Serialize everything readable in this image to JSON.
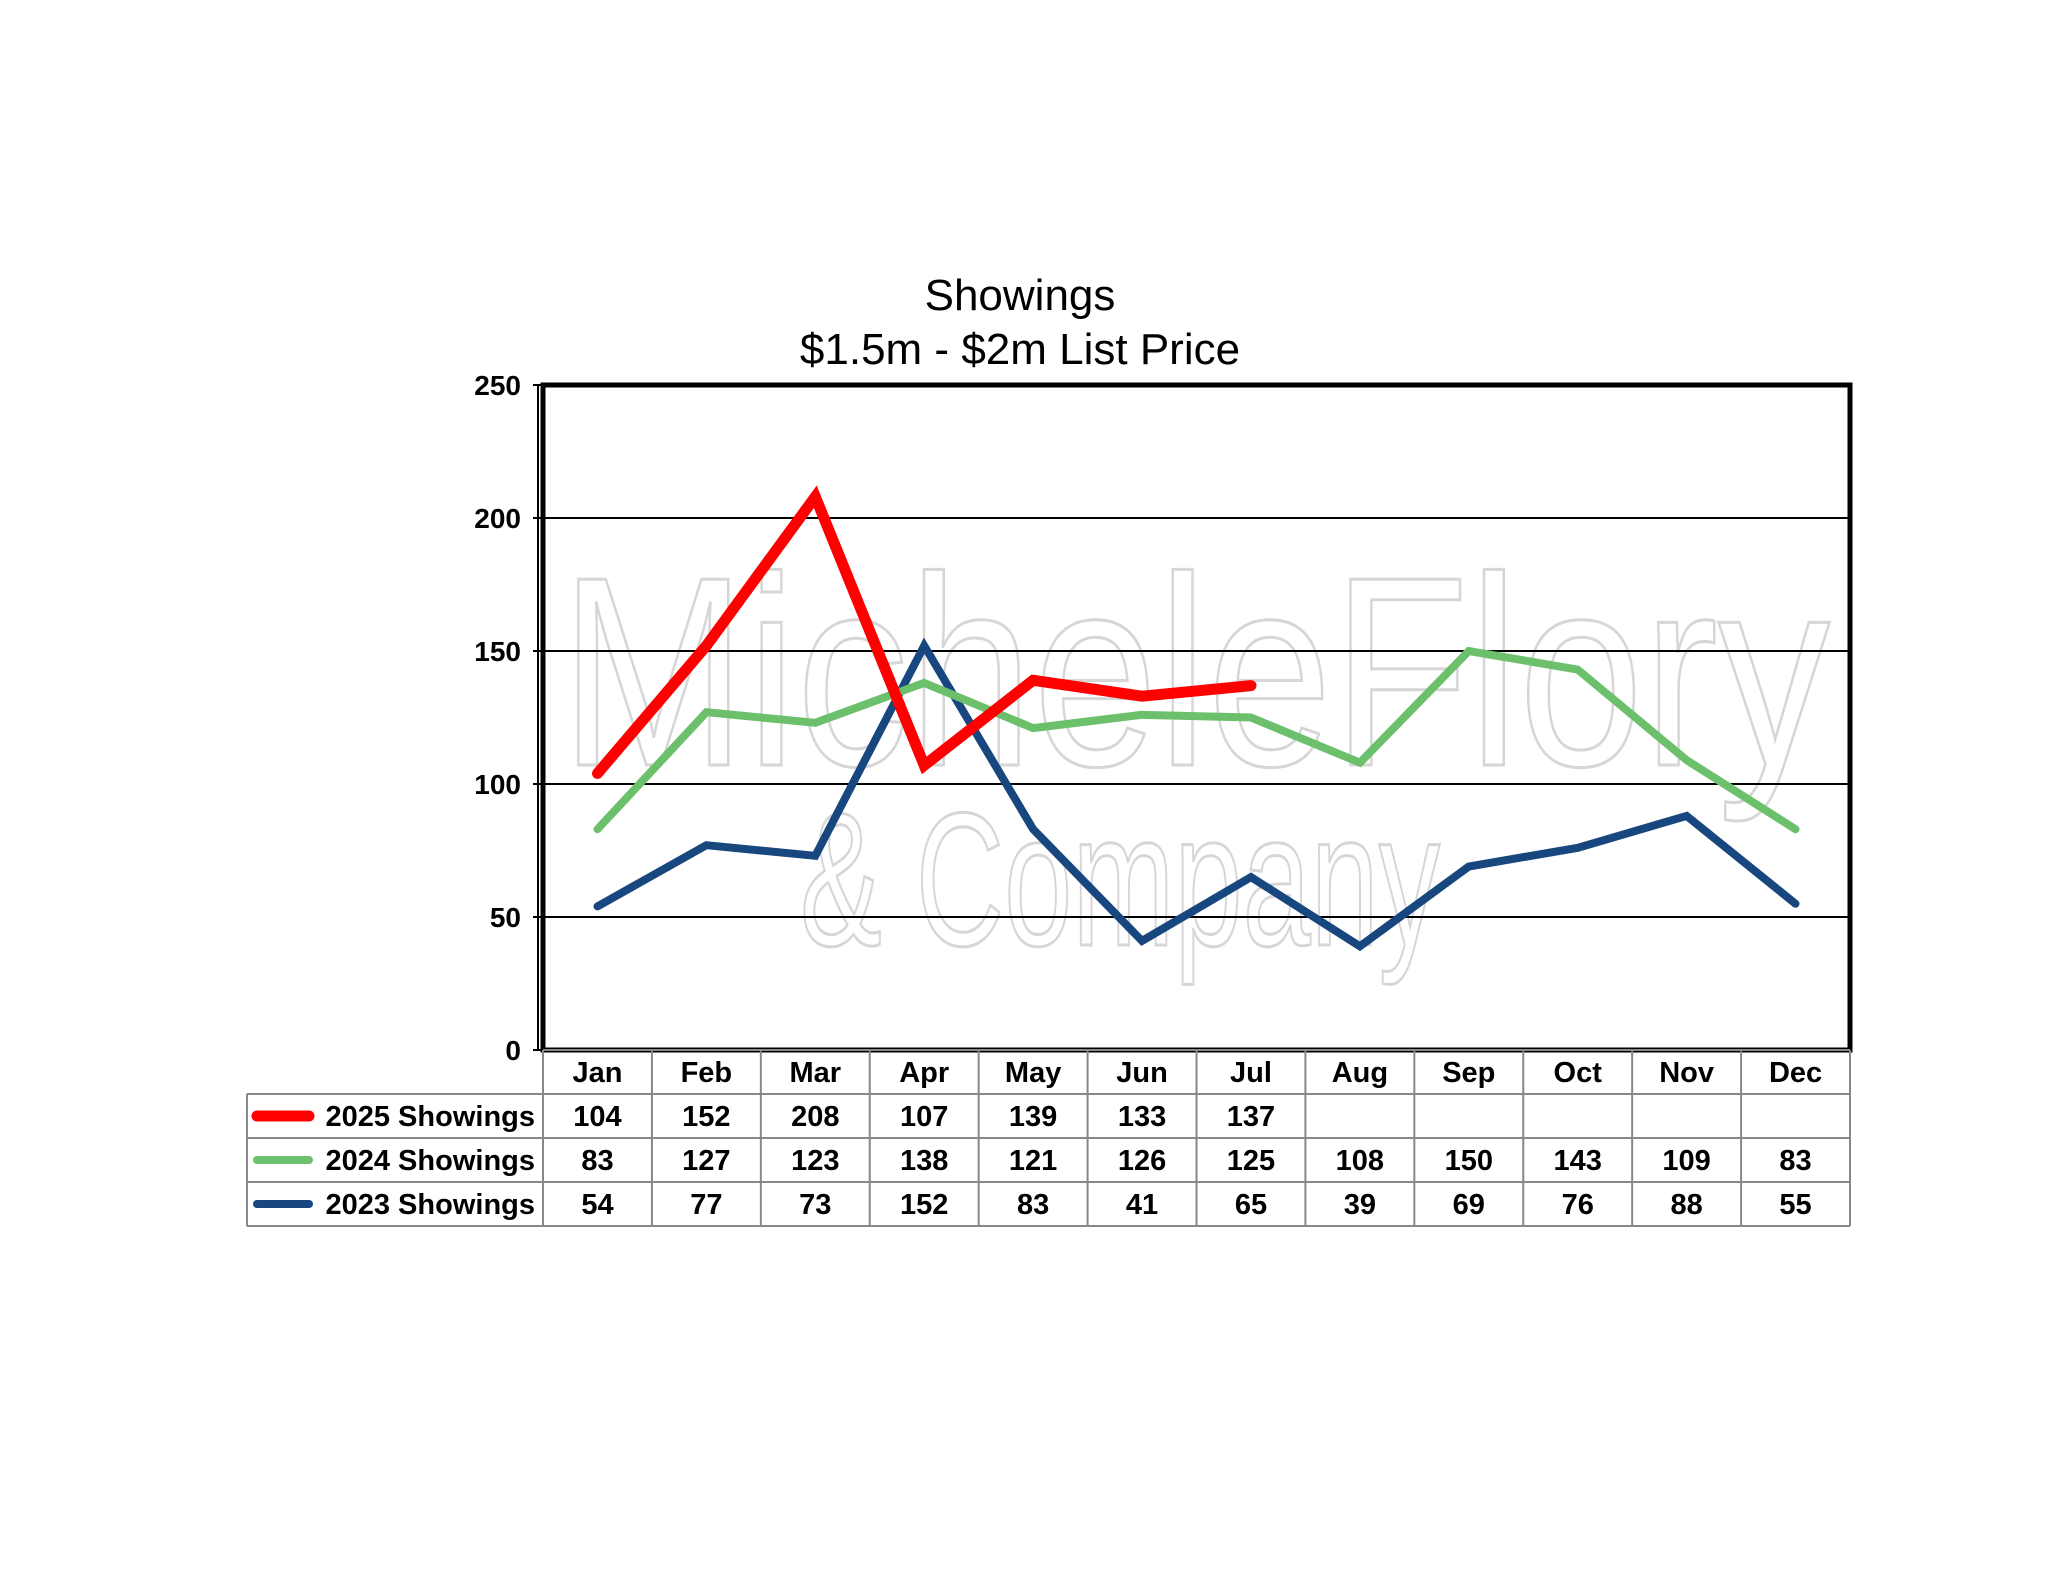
{
  "chart_data": {
    "type": "line",
    "title": [
      "Showings",
      "$1.5m - $2m List Price"
    ],
    "categories": [
      "Jan",
      "Feb",
      "Mar",
      "Apr",
      "May",
      "Jun",
      "Jul",
      "Aug",
      "Sep",
      "Oct",
      "Nov",
      "Dec"
    ],
    "ylim": [
      0,
      250
    ],
    "yticks": [
      0,
      50,
      100,
      150,
      200,
      250
    ],
    "grid": true,
    "legend": "data-table-left",
    "series": [
      {
        "name": "2025 Showings",
        "color": "#ff0000",
        "values": [
          104,
          152,
          208,
          107,
          139,
          133,
          137,
          null,
          null,
          null,
          null,
          null
        ]
      },
      {
        "name": "2024 Showings",
        "color": "#6cc06c",
        "values": [
          83,
          127,
          123,
          138,
          121,
          126,
          125,
          108,
          150,
          143,
          109,
          83
        ]
      },
      {
        "name": "2023 Showings",
        "color": "#17477e",
        "values": [
          54,
          77,
          73,
          152,
          83,
          41,
          65,
          39,
          69,
          76,
          88,
          55
        ]
      }
    ]
  },
  "watermark": {
    "line1": "MicheleFlory",
    "line2": "& Company"
  }
}
